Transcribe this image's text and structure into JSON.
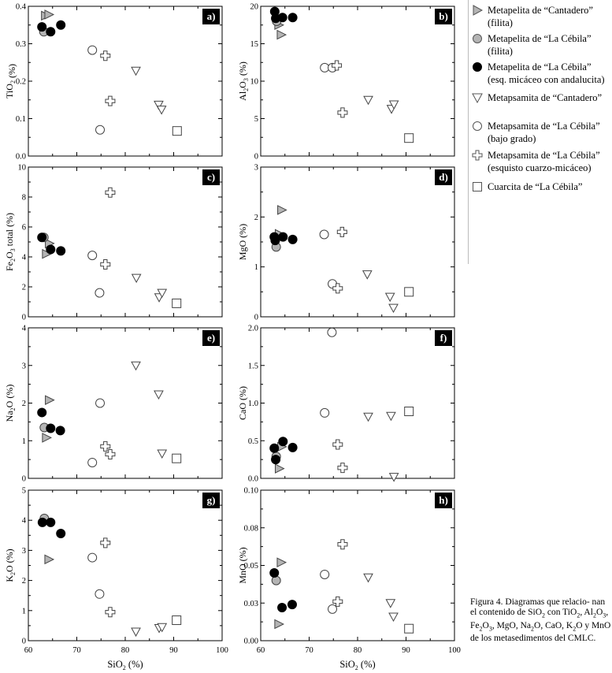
{
  "chart_data": {
    "type": "scatter",
    "x_axis": {
      "label": "SiO2 (%)",
      "range": [
        60,
        100
      ],
      "ticks": [
        "60",
        "70",
        "80",
        "90",
        "100"
      ]
    },
    "groups": [
      {
        "id": "mp_cant",
        "name": "Metapelita de “Cantadero”",
        "sub": "(filita)",
        "marker": "triangle-right",
        "fill": "#b4b4b4"
      },
      {
        "id": "mp_ceb_f",
        "name": "Metapelita de “La Cébila”",
        "sub": "(filita)",
        "marker": "circle",
        "fill": "#b4b4b4"
      },
      {
        "id": "mp_ceb_e",
        "name": "Metapelita de “La Cébila”",
        "sub": "(esq. micáceo con andalucita)",
        "marker": "circle",
        "fill": "#000000"
      },
      {
        "id": "ms_cant",
        "name": "Metapsamita de “Cantadero”",
        "sub": "",
        "marker": "triangle-down",
        "fill": "#ffffff"
      },
      {
        "id": "ms_ceb_bg",
        "name": "Metapsamita de “La Cébila”",
        "sub": "(bajo grado)",
        "marker": "circle",
        "fill": "#ffffff"
      },
      {
        "id": "ms_ceb_e",
        "name": "Metapsamita de “La Cébila”",
        "sub": "(esquisto cuarzo-micáceo)",
        "marker": "cross",
        "fill": "#ffffff"
      },
      {
        "id": "cuarcita",
        "name": "Cuarcita de “La Cébila”",
        "sub": "",
        "marker": "square",
        "fill": "#ffffff"
      }
    ],
    "panels": [
      {
        "id": "a",
        "tag": "a)",
        "ylabel_base": "TiO",
        "ylabel_sub": "2",
        "ylabel_tail": " (%)",
        "ylim": [
          0,
          0.4
        ],
        "yticks": [
          "0.0",
          "0.1",
          "0.2",
          "0.3",
          "0.4"
        ],
        "series": {
          "mp_cant": [
            [
              63.6,
              0.375
            ],
            [
              64.3,
              0.378
            ]
          ],
          "mp_ceb_f": [
            [
              63.2,
              0.332
            ]
          ],
          "mp_ceb_e": [
            [
              62.8,
              0.345
            ],
            [
              64.6,
              0.332
            ],
            [
              66.7,
              0.35
            ]
          ],
          "ms_cant": [
            [
              82.2,
              0.228
            ],
            [
              86.9,
              0.137
            ],
            [
              87.5,
              0.124
            ]
          ],
          "ms_ceb_bg": [
            [
              73.2,
              0.283
            ],
            [
              74.8,
              0.07
            ]
          ],
          "ms_ceb_e": [
            [
              75.9,
              0.268
            ],
            [
              76.9,
              0.147
            ]
          ],
          "cuarcita": [
            [
              90.7,
              0.067
            ]
          ]
        }
      },
      {
        "id": "b",
        "tag": "b)",
        "ylabel_base": "Al",
        "ylabel_sub": "2",
        "ylabel_mid": "O",
        "ylabel_sub2": "3",
        "ylabel_tail": " (%)",
        "ylim": [
          0,
          20
        ],
        "yticks": [
          "0",
          "5",
          "10",
          "15",
          "20"
        ],
        "series": {
          "mp_cant": [
            [
              63.8,
              17.5
            ],
            [
              64.3,
              16.2
            ]
          ],
          "mp_ceb_f": [
            [
              63.3,
              18.0
            ]
          ],
          "mp_ceb_e": [
            [
              62.9,
              19.3
            ],
            [
              63.1,
              18.4
            ],
            [
              64.5,
              18.5
            ],
            [
              66.6,
              18.5
            ]
          ],
          "ms_cant": [
            [
              82.2,
              7.5
            ],
            [
              87.0,
              6.3
            ],
            [
              87.5,
              6.9
            ]
          ],
          "ms_ceb_bg": [
            [
              73.2,
              11.8
            ],
            [
              74.8,
              11.8
            ]
          ],
          "ms_ceb_e": [
            [
              75.7,
              12.1
            ],
            [
              76.9,
              5.8
            ]
          ],
          "cuarcita": [
            [
              90.6,
              2.4
            ]
          ]
        }
      },
      {
        "id": "c",
        "tag": "c)",
        "ylabel_base": "Fe",
        "ylabel_sub": "2",
        "ylabel_mid": "O",
        "ylabel_sub2": "3",
        "ylabel_tail": " total (%)",
        "ylim": [
          0,
          10
        ],
        "yticks": [
          "0",
          "2",
          "4",
          "6",
          "8",
          "10"
        ],
        "series": {
          "mp_cant": [
            [
              63.8,
              4.2
            ],
            [
              64.4,
              4.9
            ]
          ],
          "mp_ceb_f": [
            [
              63.2,
              5.3
            ]
          ],
          "mp_ceb_e": [
            [
              62.8,
              5.3
            ],
            [
              64.6,
              4.5
            ],
            [
              66.7,
              4.4
            ]
          ],
          "ms_cant": [
            [
              82.3,
              2.6
            ],
            [
              87.0,
              1.3
            ],
            [
              87.6,
              1.6
            ]
          ],
          "ms_ceb_bg": [
            [
              73.2,
              4.1
            ],
            [
              74.7,
              1.6
            ]
          ],
          "ms_ceb_e": [
            [
              75.9,
              3.5
            ],
            [
              76.9,
              8.3
            ]
          ],
          "cuarcita": [
            [
              90.6,
              0.9
            ]
          ]
        }
      },
      {
        "id": "d",
        "tag": "d)",
        "ylabel_base": "MgO (%)",
        "ylim": [
          0,
          3
        ],
        "yticks": [
          "0",
          "1",
          "2",
          "3"
        ],
        "series": {
          "mp_cant": [
            [
              63.9,
              1.66
            ],
            [
              64.4,
              2.14
            ]
          ],
          "mp_ceb_f": [
            [
              63.2,
              1.4
            ]
          ],
          "mp_ceb_e": [
            [
              62.8,
              1.6
            ],
            [
              63.0,
              1.53
            ],
            [
              64.6,
              1.6
            ],
            [
              66.6,
              1.55
            ]
          ],
          "ms_cant": [
            [
              82.0,
              0.85
            ],
            [
              86.7,
              0.4
            ],
            [
              87.4,
              0.18
            ]
          ],
          "ms_ceb_bg": [
            [
              73.1,
              1.65
            ],
            [
              74.8,
              0.66
            ]
          ],
          "ms_ceb_e": [
            [
              75.9,
              0.57
            ],
            [
              76.8,
              1.7
            ]
          ],
          "cuarcita": [
            [
              90.6,
              0.5
            ]
          ]
        }
      },
      {
        "id": "e",
        "tag": "e)",
        "ylabel_base": "Na",
        "ylabel_sub": "2",
        "ylabel_mid": "O (%)",
        "ylim": [
          0,
          4
        ],
        "yticks": [
          "0",
          "1",
          "2",
          "3",
          "4"
        ],
        "series": {
          "mp_cant": [
            [
              64.4,
              2.08
            ],
            [
              63.8,
              1.08
            ]
          ],
          "mp_ceb_f": [
            [
              63.3,
              1.35
            ]
          ],
          "mp_ceb_e": [
            [
              62.8,
              1.75
            ],
            [
              64.6,
              1.33
            ],
            [
              66.6,
              1.27
            ]
          ],
          "ms_cant": [
            [
              82.2,
              3.0
            ],
            [
              86.9,
              2.23
            ],
            [
              87.6,
              0.66
            ]
          ],
          "ms_ceb_bg": [
            [
              73.2,
              0.42
            ],
            [
              74.8,
              2.0
            ]
          ],
          "ms_ceb_e": [
            [
              75.9,
              0.85
            ],
            [
              76.9,
              0.64
            ]
          ],
          "cuarcita": [
            [
              90.6,
              0.53
            ]
          ]
        }
      },
      {
        "id": "f",
        "tag": "f)",
        "ylabel_base": "CaO (%)",
        "ylim": [
          0,
          2
        ],
        "yticks": [
          "0.0",
          "0.5",
          "1.0",
          "1.5",
          "2.0"
        ],
        "series": {
          "mp_cant": [
            [
              63.9,
              0.13
            ],
            [
              64.4,
              0.42
            ]
          ],
          "mp_ceb_f": [
            [
              63.2,
              0.29
            ]
          ],
          "mp_ceb_e": [
            [
              62.8,
              0.4
            ],
            [
              63.1,
              0.25
            ],
            [
              64.6,
              0.49
            ],
            [
              66.6,
              0.41
            ]
          ],
          "ms_cant": [
            [
              82.2,
              0.82
            ],
            [
              86.9,
              0.83
            ],
            [
              87.5,
              0.02
            ]
          ],
          "ms_ceb_bg": [
            [
              73.2,
              0.87
            ],
            [
              74.7,
              1.94
            ]
          ],
          "ms_ceb_e": [
            [
              75.9,
              0.45
            ],
            [
              76.9,
              0.14
            ]
          ],
          "cuarcita": [
            [
              90.6,
              0.89
            ]
          ]
        }
      },
      {
        "id": "g",
        "tag": "g)",
        "ylabel_base": "K",
        "ylabel_sub": "2",
        "ylabel_mid": "O (%)",
        "ylim": [
          0,
          5
        ],
        "yticks": [
          "0",
          "1",
          "2",
          "3",
          "4",
          "5"
        ],
        "series": {
          "mp_cant": [
            [
              64.3,
              2.7
            ]
          ],
          "mp_ceb_f": [
            [
              63.3,
              4.06
            ]
          ],
          "mp_ceb_e": [
            [
              62.9,
              3.93
            ],
            [
              64.6,
              3.93
            ],
            [
              66.7,
              3.56
            ]
          ],
          "ms_cant": [
            [
              82.2,
              0.3
            ],
            [
              87.0,
              0.42
            ],
            [
              87.6,
              0.45
            ]
          ],
          "ms_ceb_bg": [
            [
              73.2,
              2.76
            ],
            [
              74.7,
              1.55
            ]
          ],
          "ms_ceb_e": [
            [
              75.9,
              3.25
            ],
            [
              76.9,
              0.95
            ]
          ],
          "cuarcita": [
            [
              90.6,
              0.68
            ]
          ]
        }
      },
      {
        "id": "h",
        "tag": "h)",
        "ylabel_base": "MnO (%)",
        "ylim": [
          0,
          0.1
        ],
        "yticks": [
          "0.00",
          "0.03",
          "0.05",
          "0.08",
          "0.10"
        ],
        "series": {
          "mp_cant": [
            [
              63.8,
              0.011
            ],
            [
              64.3,
              0.052
            ]
          ],
          "mp_ceb_f": [
            [
              63.2,
              0.04
            ]
          ],
          "mp_ceb_e": [
            [
              62.8,
              0.045
            ],
            [
              64.4,
              0.022
            ],
            [
              66.5,
              0.024
            ]
          ],
          "ms_cant": [
            [
              82.2,
              0.042
            ],
            [
              86.8,
              0.025
            ],
            [
              87.4,
              0.016
            ]
          ],
          "ms_ceb_bg": [
            [
              73.2,
              0.044
            ],
            [
              74.8,
              0.021
            ]
          ],
          "ms_ceb_e": [
            [
              75.9,
              0.026
            ],
            [
              76.9,
              0.064
            ]
          ],
          "cuarcita": [
            [
              90.6,
              0.008
            ]
          ]
        }
      }
    ]
  },
  "caption": {
    "lead": "Figura 4. Diagramas que relacio- nan el contenido de SiO",
    "s2a": "2",
    "t1": " con TiO",
    "s2b": "2",
    "t2": ", Al",
    "s2c": "2",
    "t3": "O",
    "s3a": "3",
    "t4": ", Fe",
    "s2d": "2",
    "t5": "O",
    "s3b": "3",
    "t6": ", MgO, Na",
    "s2e": "2",
    "t7": "O, CaO, K",
    "s2f": "2",
    "t8": "O y MnO de los metasedimentos del CMLC."
  }
}
